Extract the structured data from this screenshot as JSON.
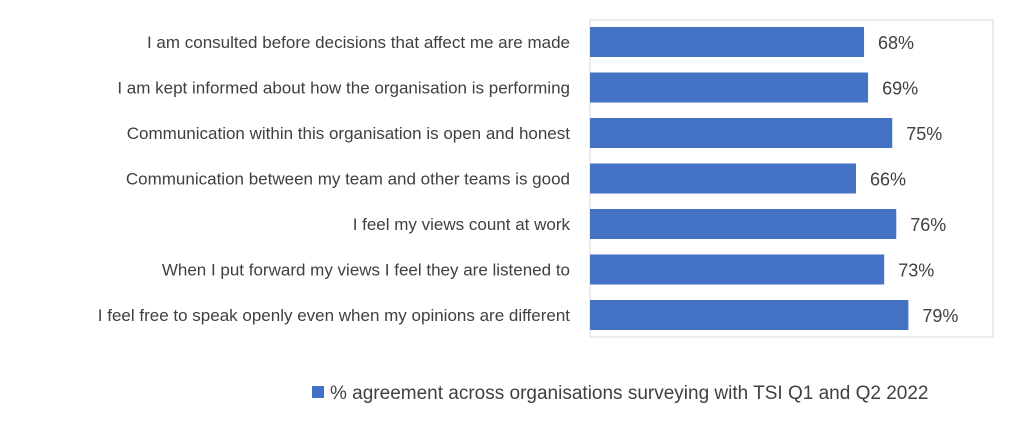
{
  "chart_data": {
    "type": "bar",
    "orientation": "horizontal",
    "categories": [
      "I am consulted before decisions that affect me are made",
      "I am kept informed about how the organisation is performing",
      "Communication within this organisation is open and honest",
      "Communication between my team and other teams is good",
      "I feel my views count at work",
      "When I put forward my views I feel they are listened to",
      "I feel free to speak openly even when my opinions are different"
    ],
    "series": [
      {
        "name": "% agreement across organisations surveying with TSI Q1 and Q2 2022",
        "values": [
          68,
          69,
          75,
          66,
          76,
          73,
          79
        ],
        "labels": [
          "68%",
          "69%",
          "75%",
          "66%",
          "76%",
          "73%",
          "79%"
        ],
        "color": "#4472C4"
      }
    ],
    "xlim": [
      0,
      100
    ],
    "grid": false,
    "legend": "bottom",
    "title": "",
    "xlabel": "",
    "ylabel": ""
  }
}
